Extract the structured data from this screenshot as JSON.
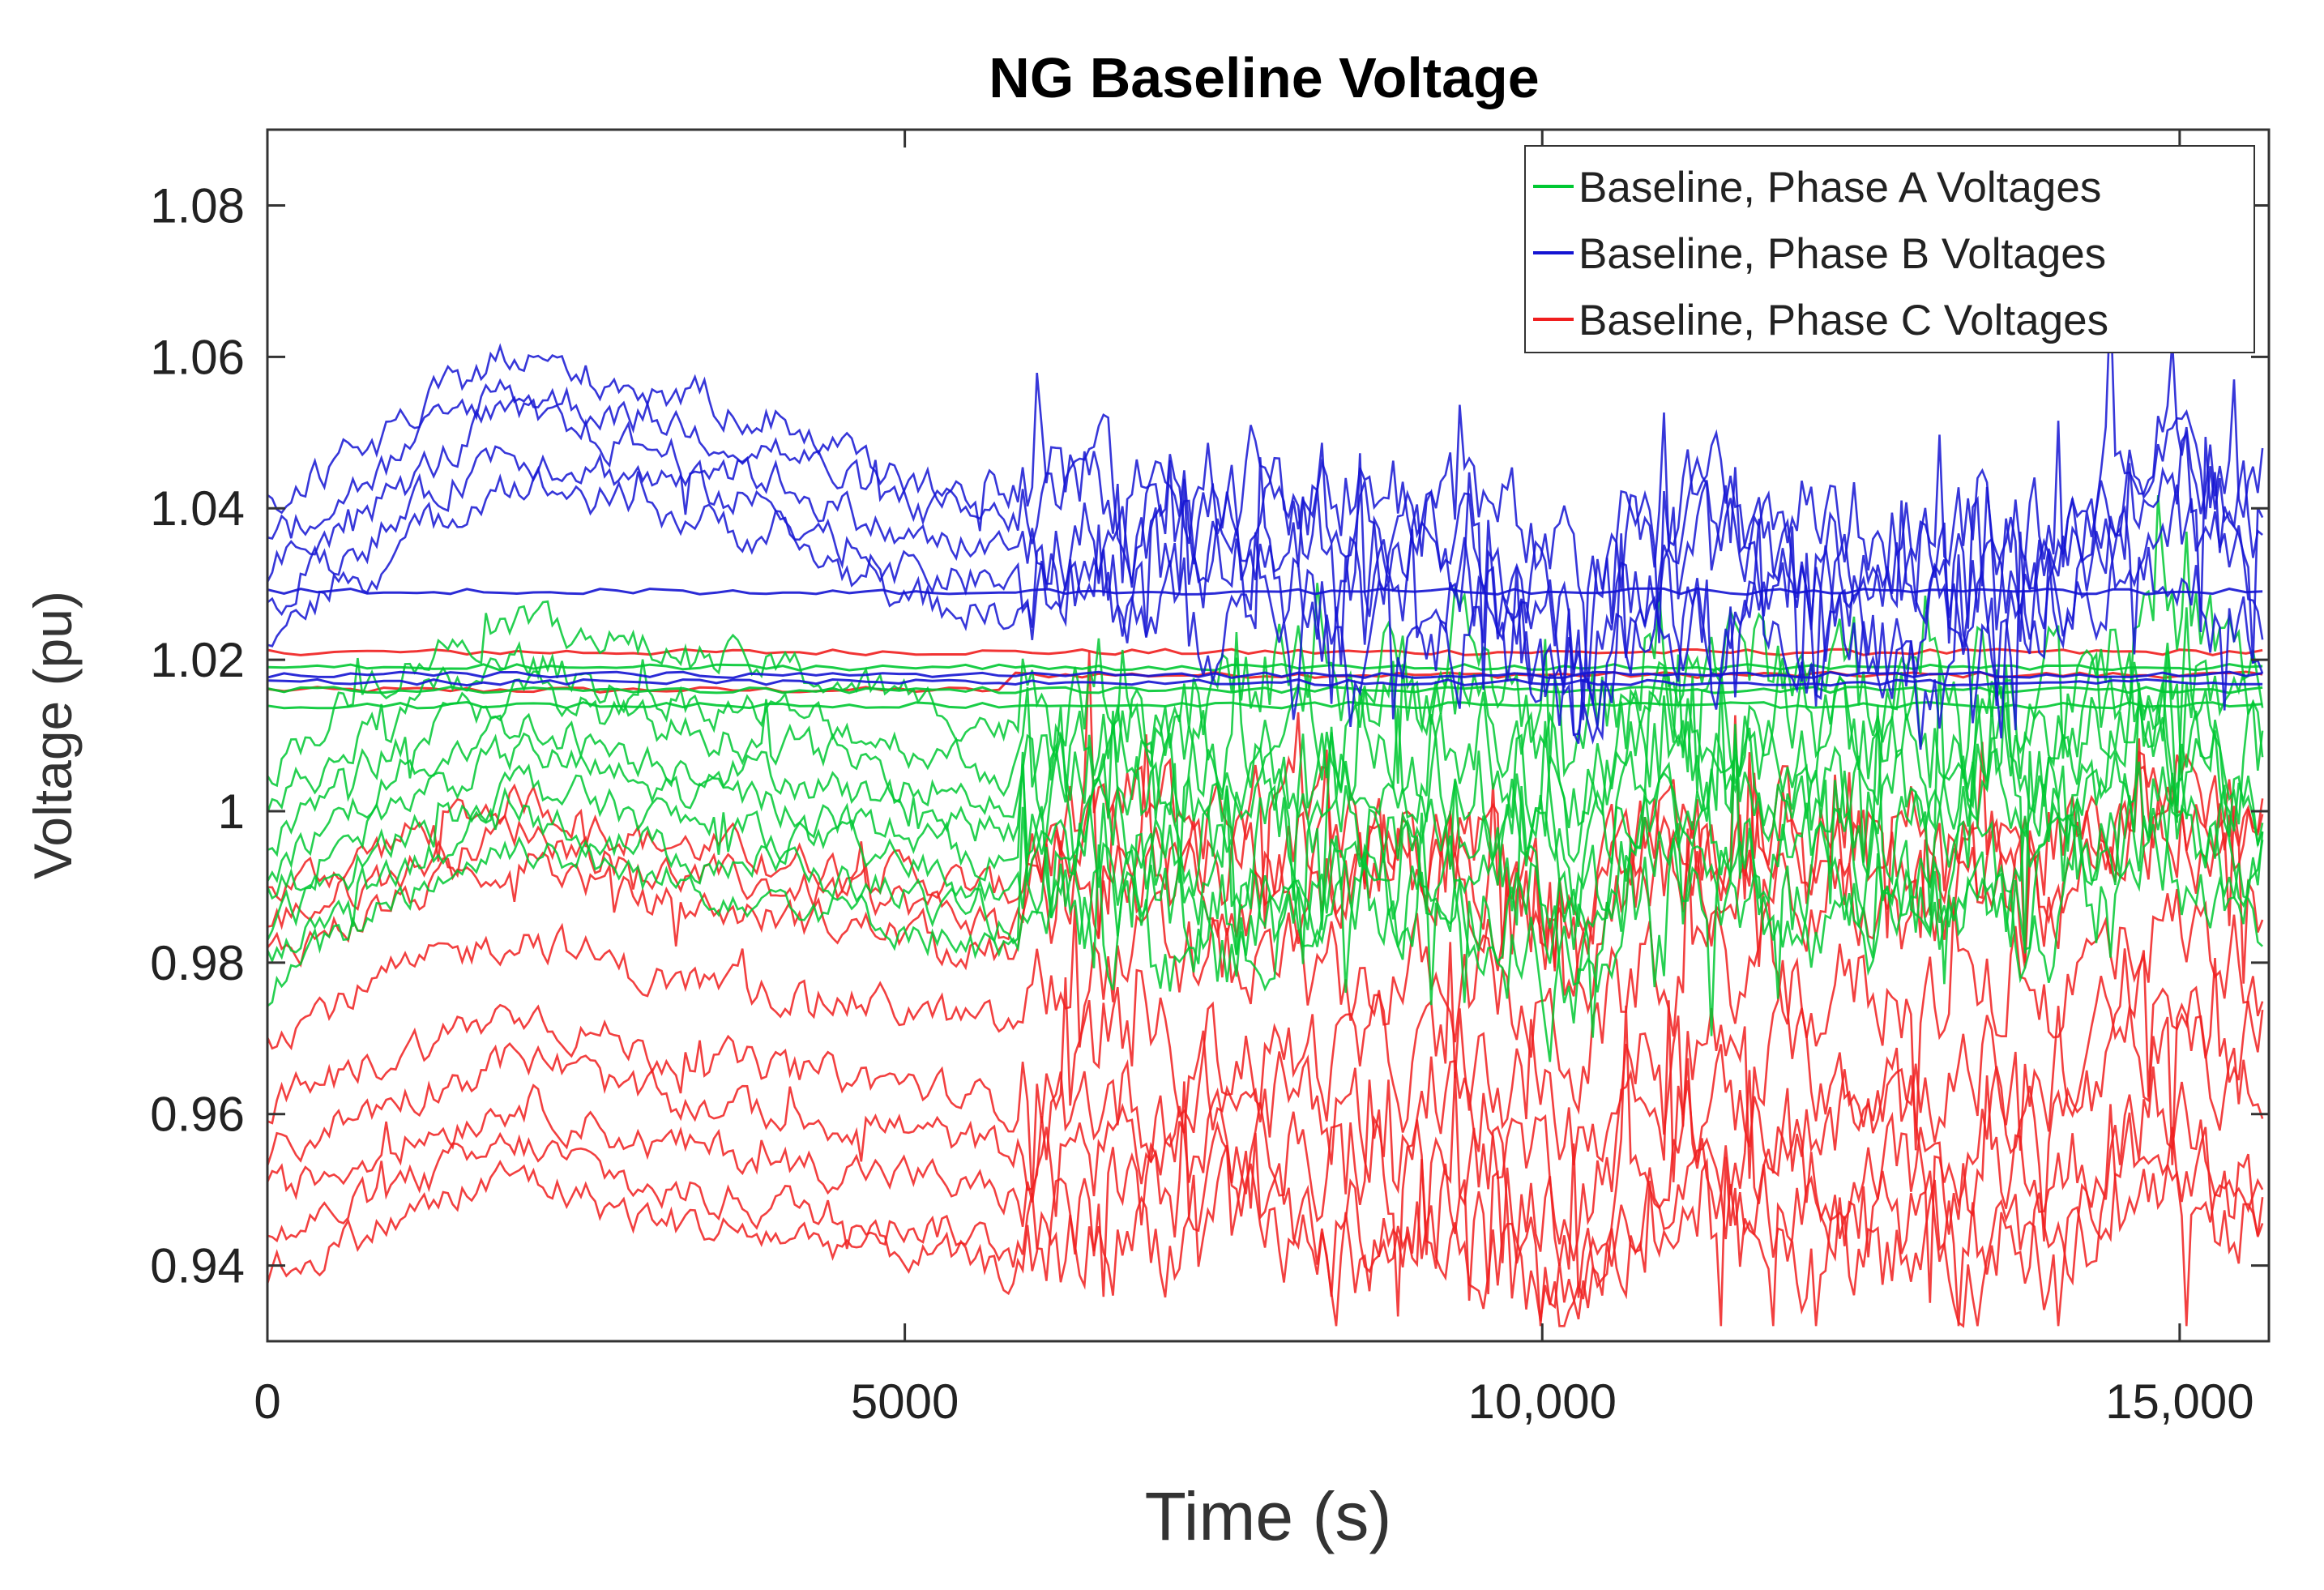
{
  "chart_data": {
    "type": "line",
    "title": "NG Baseline Voltage",
    "xlabel": "Time (s)",
    "ylabel": "Voltage (pu)",
    "xlim": [
      0,
      15700
    ],
    "ylim": [
      0.93,
      1.09
    ],
    "xticks": [
      0,
      5000,
      10000,
      15000
    ],
    "xtick_labels": [
      "0",
      "5000",
      "10,000",
      "15,000"
    ],
    "yticks": [
      0.94,
      0.96,
      0.98,
      1,
      1.02,
      1.04,
      1.06,
      1.08
    ],
    "ytick_labels": [
      "0.94",
      "0.96",
      "0.98",
      "1",
      "1.02",
      "1.04",
      "1.06",
      "1.08"
    ],
    "grid": false,
    "legend_position": "top-right",
    "series": [
      {
        "name": "Baseline, Phase A Voltages",
        "color": "#00c832",
        "base_points": [
          [
            0,
            0.99
          ],
          [
            1000,
            1.003
          ],
          [
            2000,
            1.01
          ],
          [
            3000,
            1.005
          ],
          [
            4000,
            1.003
          ],
          [
            5000,
            0.999
          ],
          [
            5800,
            0.995
          ],
          [
            6500,
            1.0
          ],
          [
            7500,
            0.998
          ],
          [
            8500,
            1.0
          ],
          [
            9500,
            1.002
          ],
          [
            10300,
            0.99
          ],
          [
            10800,
            1.004
          ],
          [
            12000,
            1.002
          ],
          [
            13000,
            1.0
          ],
          [
            14000,
            1.001
          ],
          [
            14800,
            1.008
          ],
          [
            15700,
            1.0
          ]
        ],
        "offsets": [
          0.016,
          0.01,
          0.006,
          0.002,
          -0.002,
          -0.006,
          -0.01,
          -0.014
        ],
        "steady_levels": [
          1.019,
          1.016,
          1.014
        ]
      },
      {
        "name": "Baseline, Phase B Voltages",
        "color": "#1414d2",
        "base_points": [
          [
            0,
            1.032
          ],
          [
            1000,
            1.042
          ],
          [
            1800,
            1.052
          ],
          [
            3000,
            1.048
          ],
          [
            4000,
            1.044
          ],
          [
            5000,
            1.036
          ],
          [
            5800,
            1.034
          ],
          [
            6500,
            1.036
          ],
          [
            7500,
            1.035
          ],
          [
            8500,
            1.034
          ],
          [
            9500,
            1.032
          ],
          [
            10300,
            1.02
          ],
          [
            10800,
            1.033
          ],
          [
            12000,
            1.031
          ],
          [
            13000,
            1.029
          ],
          [
            14000,
            1.03
          ],
          [
            14800,
            1.042
          ],
          [
            15700,
            1.034
          ]
        ],
        "offsets": [
          0.008,
          0.004,
          0.0,
          -0.004,
          -0.008
        ],
        "steady_levels": [
          1.029,
          1.018,
          1.017
        ]
      },
      {
        "name": "Baseline, Phase C Voltages",
        "color": "#f01e1e",
        "base_points": [
          [
            0,
            0.955
          ],
          [
            1000,
            0.962
          ],
          [
            2000,
            0.968
          ],
          [
            3000,
            0.962
          ],
          [
            4000,
            0.96
          ],
          [
            5000,
            0.958
          ],
          [
            5800,
            0.955
          ],
          [
            6500,
            0.962
          ],
          [
            7500,
            0.962
          ],
          [
            8500,
            0.96
          ],
          [
            9500,
            0.96
          ],
          [
            10300,
            0.95
          ],
          [
            10800,
            0.962
          ],
          [
            12000,
            0.96
          ],
          [
            13000,
            0.958
          ],
          [
            14000,
            0.958
          ],
          [
            14800,
            0.968
          ],
          [
            15700,
            0.962
          ]
        ],
        "offsets": [
          0.034,
          0.03,
          0.026,
          0.016,
          0.006,
          0.0,
          -0.006,
          -0.012,
          -0.016
        ],
        "steady_levels": [
          1.016,
          1.021
        ]
      }
    ]
  }
}
